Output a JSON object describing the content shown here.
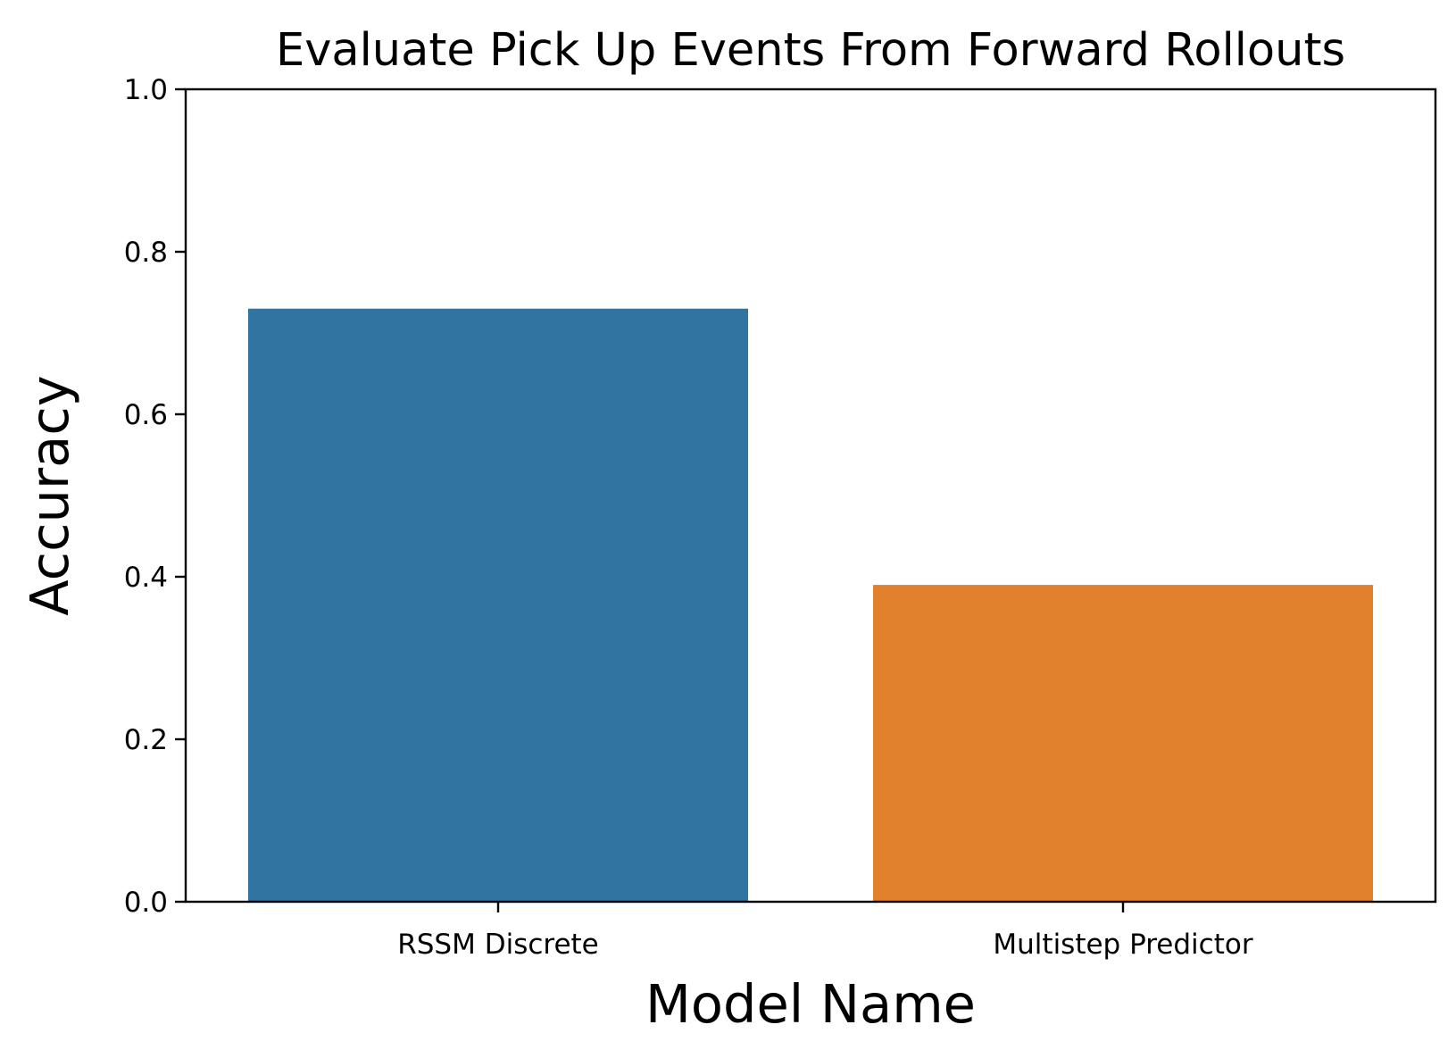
{
  "chart_data": {
    "type": "bar",
    "title": "Evaluate Pick Up Events From Forward Rollouts",
    "xlabel": "Model Name",
    "ylabel": "Accuracy",
    "categories": [
      "RSSM Discrete",
      "Multistep Predictor"
    ],
    "values": [
      0.73,
      0.39
    ],
    "colors": [
      "#3274a1",
      "#e1812c"
    ],
    "ylim": [
      0,
      1
    ],
    "yticks": [
      "0.0",
      "0.2",
      "0.4",
      "0.6",
      "0.8",
      "1.0"
    ],
    "grid": false,
    "legend": "none"
  }
}
